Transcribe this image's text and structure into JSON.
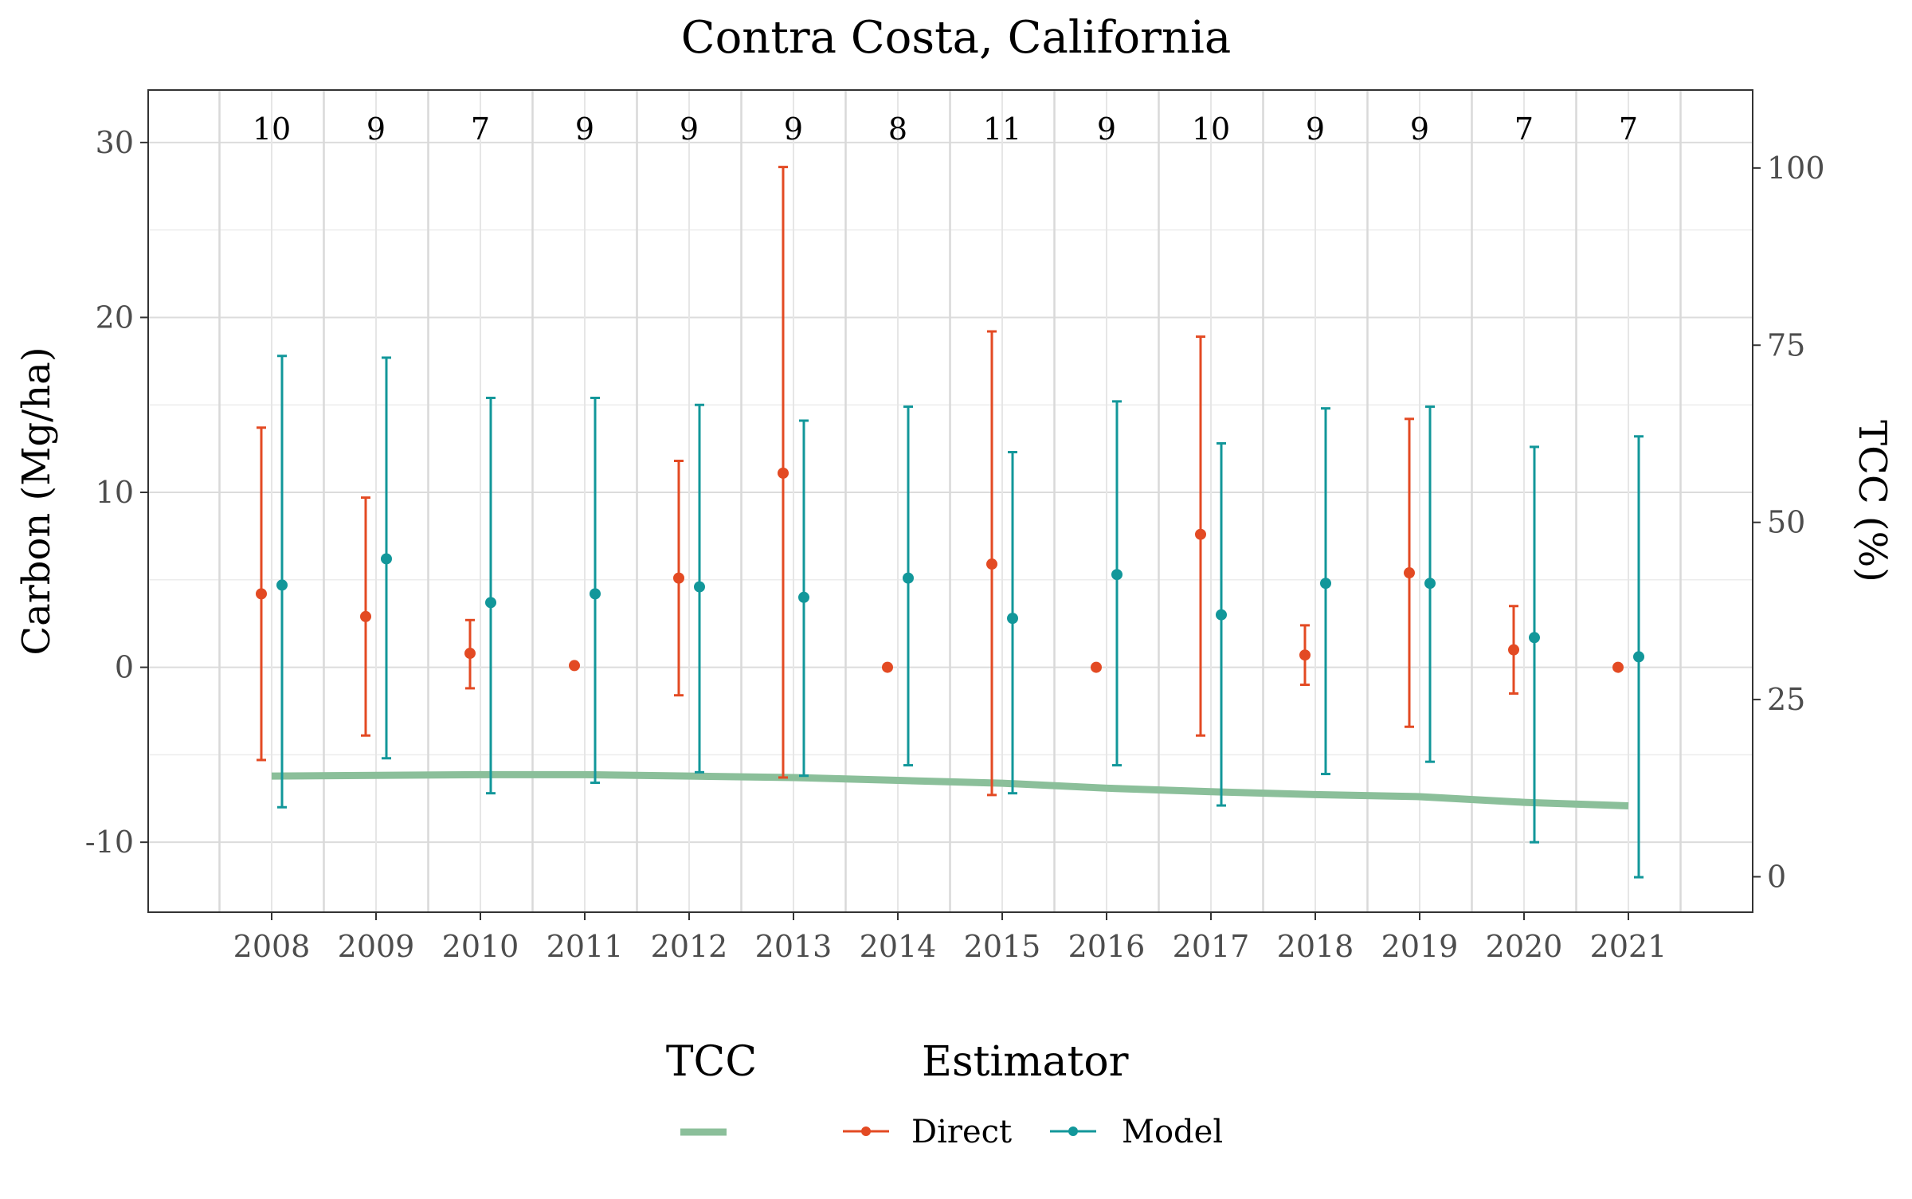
{
  "chart_data": {
    "type": "line",
    "title": "Contra Costa, California",
    "ylabel": "Carbon (Mg/ha)",
    "y2label": "TCC (%)",
    "xlabel": "",
    "categories": [
      "2008",
      "2009",
      "2010",
      "2011",
      "2012",
      "2013",
      "2014",
      "2015",
      "2016",
      "2017",
      "2018",
      "2019",
      "2020",
      "2021"
    ],
    "ylim": [
      -14,
      33
    ],
    "y_ticks": [
      -10,
      0,
      10,
      20,
      30
    ],
    "y_tick_labels": [
      "-10",
      "0",
      "10",
      "20",
      "30"
    ],
    "y2lim": [
      -5,
      111
    ],
    "y2_ticks": [
      0,
      25,
      50,
      75,
      100
    ],
    "y2_tick_labels": [
      "0",
      "25",
      "50",
      "75",
      "100"
    ],
    "counts": [
      "10",
      "9",
      "7",
      "9",
      "9",
      "9",
      "8",
      "11",
      "9",
      "10",
      "9",
      "9",
      "7",
      "7"
    ],
    "series": [
      {
        "name": "Direct",
        "color": "#e34a23",
        "values": [
          4.2,
          2.9,
          0.8,
          0.1,
          5.1,
          11.1,
          0.0,
          5.9,
          0.0,
          7.6,
          0.7,
          5.4,
          1.0,
          0.0
        ],
        "lower": [
          -5.3,
          -3.9,
          -1.2,
          0.1,
          -1.6,
          -6.3,
          null,
          -7.3,
          null,
          -3.9,
          -1.0,
          -3.4,
          -1.5,
          null
        ],
        "upper": [
          13.7,
          9.7,
          2.7,
          0.1,
          11.8,
          28.6,
          null,
          19.2,
          null,
          18.9,
          2.4,
          14.2,
          3.5,
          null
        ]
      },
      {
        "name": "Model",
        "color": "#12979a",
        "values": [
          4.7,
          6.2,
          3.7,
          4.2,
          4.6,
          4.0,
          5.1,
          2.8,
          5.3,
          3.0,
          4.8,
          4.8,
          1.7,
          0.6
        ],
        "lower": [
          -8.0,
          -5.2,
          -7.2,
          -6.6,
          -6.0,
          -6.2,
          -5.6,
          -7.2,
          -5.6,
          -7.9,
          -6.1,
          -5.4,
          -10.0,
          -12.0
        ],
        "upper": [
          17.8,
          17.7,
          15.4,
          15.4,
          15.0,
          14.1,
          14.9,
          12.3,
          15.2,
          12.8,
          14.8,
          14.9,
          12.6,
          13.2
        ]
      },
      {
        "name": "TCC",
        "axis": "right",
        "color": "#8bbf9a",
        "values": [
          14.2,
          14.3,
          14.4,
          14.4,
          14.2,
          14.0,
          13.6,
          13.2,
          12.5,
          12.0,
          11.6,
          11.3,
          10.5,
          10.0
        ]
      }
    ],
    "grid": true,
    "legend": {
      "placement": "bottom",
      "tcc_title": "TCC",
      "estimator_title": "Estimator",
      "entries": [
        "Direct",
        "Model"
      ]
    }
  }
}
